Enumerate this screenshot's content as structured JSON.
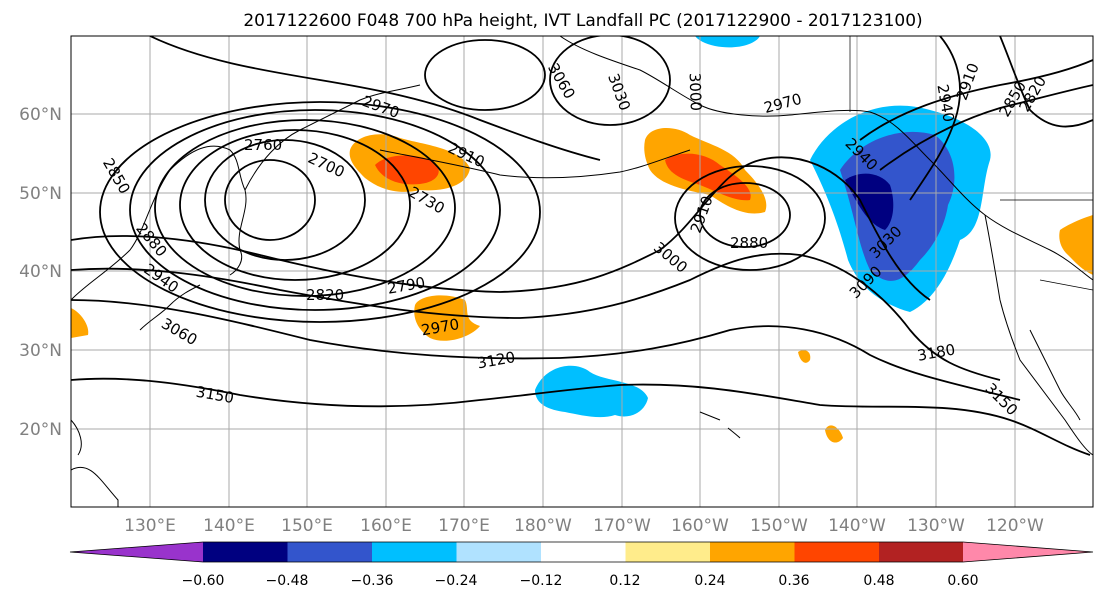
{
  "title": "2017122600 F048 700 hPa height, IVT Landfall PC (2017122900 - 2017123100)",
  "map": {
    "lon_labels": [
      "130°E",
      "140°E",
      "150°E",
      "160°E",
      "170°E",
      "180°W",
      "170°W",
      "160°W",
      "150°W",
      "140°W",
      "130°W",
      "120°W"
    ],
    "lat_labels": [
      "60°N",
      "50°N",
      "40°N",
      "30°N",
      "20°N"
    ],
    "contour_labels": [
      "2850",
      "2880",
      "2940",
      "3060",
      "2760",
      "2700",
      "2970",
      "2910",
      "2730",
      "3060",
      "3030",
      "3000",
      "2970",
      "2940",
      "2910",
      "2850",
      "2820",
      "2790",
      "2820",
      "2970",
      "3120",
      "3150",
      "2940",
      "2880",
      "3000",
      "2910",
      "3030",
      "3090",
      "3180",
      "3150"
    ]
  },
  "colorbar": {
    "tick_labels": [
      "−0.60",
      "−0.48",
      "−0.36",
      "−0.24",
      "−0.12",
      "0.12",
      "0.24",
      "0.36",
      "0.48",
      "0.60"
    ],
    "colors": [
      "#9933cc",
      "#000080",
      "#3355cc",
      "#00bfff",
      "#b0e2ff",
      "#ffffff",
      "#ffec8b",
      "#ffa500",
      "#ff4500",
      "#b22222",
      "#ff88aa"
    ]
  }
}
